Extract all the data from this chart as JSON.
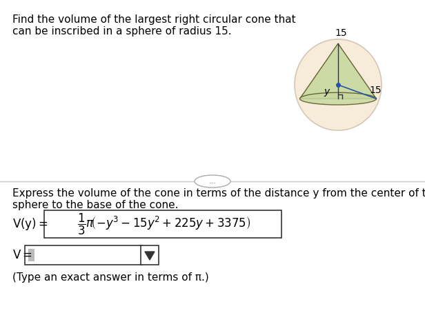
{
  "background_color": "#f2f2f2",
  "title_line1": "Find the volume of the largest right circular cone that",
  "title_line2": "can be inscribed in a sphere of radius 15.",
  "express_line1": "Express the volume of the cone in terms of the distance y from the center of the",
  "express_line2": "sphere to the base of the cone.",
  "dots_text": "...",
  "label_15_top": "15",
  "label_15_side": "15",
  "label_y": "y",
  "note": "(Type an exact answer in terms of π.)",
  "font_size_title": 11,
  "font_size_body": 11
}
